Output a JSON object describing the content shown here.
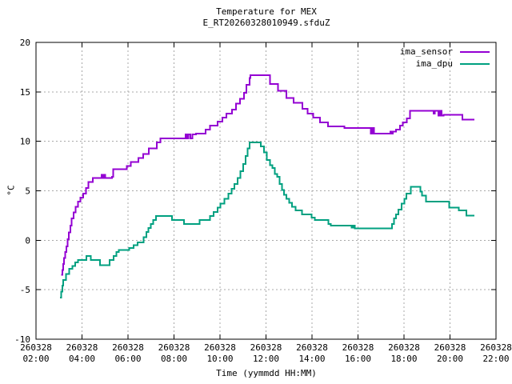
{
  "title": {
    "line1": "Temperature for MEX",
    "line2": "E_RT20260328010949.sfduZ"
  },
  "axes": {
    "x": {
      "label": "Time (yymmdd HH:MM)",
      "date": "260328",
      "ticks": [
        {
          "date": "260328",
          "time": "02:00",
          "hour": 2
        },
        {
          "date": "260328",
          "time": "04:00",
          "hour": 4
        },
        {
          "date": "260328",
          "time": "06:00",
          "hour": 6
        },
        {
          "date": "260328",
          "time": "08:00",
          "hour": 8
        },
        {
          "date": "260328",
          "time": "10:00",
          "hour": 10
        },
        {
          "date": "260328",
          "time": "12:00",
          "hour": 12
        },
        {
          "date": "260328",
          "time": "14:00",
          "hour": 14
        },
        {
          "date": "260328",
          "time": "16:00",
          "hour": 16
        },
        {
          "date": "260328",
          "time": "18:00",
          "hour": 18
        },
        {
          "date": "260328",
          "time": "20:00",
          "hour": 20
        },
        {
          "date": "260328",
          "time": "22:00",
          "hour": 22
        }
      ],
      "range": [
        2,
        22
      ]
    },
    "y": {
      "label": "°C",
      "ticks": [
        {
          "label": "-10",
          "value": -10
        },
        {
          "label": "-5",
          "value": -5
        },
        {
          "label": "0",
          "value": 0
        },
        {
          "label": "5",
          "value": 5
        },
        {
          "label": "10",
          "value": 10
        },
        {
          "label": "15",
          "value": 15
        },
        {
          "label": "20",
          "value": 20
        }
      ],
      "range": [
        -10,
        20
      ]
    }
  },
  "legend": {
    "position": "top-right",
    "entries": [
      {
        "label": "ima_sensor",
        "color": "#9400d3"
      },
      {
        "label": "ima_dpu",
        "color": "#00a080"
      }
    ]
  },
  "colors": {
    "grid": "#a8a8a8",
    "border": "#000000",
    "background": "#ffffff",
    "ima_sensor": "#9400d3",
    "ima_dpu": "#00a080"
  },
  "chart_data": {
    "type": "line",
    "style": "steps",
    "title": "Temperature for MEX",
    "subtitle": "E_RT20260328010949.sfduZ",
    "xlabel": "Time (yymmdd HH:MM)",
    "ylabel": "°C",
    "x_date": "260328",
    "xlim_hours": [
      2,
      22
    ],
    "ylim": [
      -10,
      20
    ],
    "grid": true,
    "legend_position": "top-right",
    "series": [
      {
        "name": "ima_sensor",
        "color": "#9400d3",
        "points_hour_degC": [
          [
            3.1,
            -3.5
          ],
          [
            3.14,
            -3.0
          ],
          [
            3.18,
            -2.4
          ],
          [
            3.22,
            -1.8
          ],
          [
            3.27,
            -1.2
          ],
          [
            3.32,
            -0.6
          ],
          [
            3.37,
            0.1
          ],
          [
            3.43,
            0.8
          ],
          [
            3.49,
            1.5
          ],
          [
            3.55,
            2.2
          ],
          [
            3.63,
            2.8
          ],
          [
            3.73,
            3.4
          ],
          [
            3.83,
            3.9
          ],
          [
            3.93,
            4.3
          ],
          [
            4.05,
            4.7
          ],
          [
            4.17,
            5.3
          ],
          [
            4.28,
            5.9
          ],
          [
            4.47,
            6.3
          ],
          [
            4.86,
            6.6
          ],
          [
            4.91,
            6.3
          ],
          [
            4.96,
            6.6
          ],
          [
            5.01,
            6.3
          ],
          [
            5.3,
            6.4
          ],
          [
            5.36,
            7.2
          ],
          [
            5.95,
            7.5
          ],
          [
            6.12,
            7.9
          ],
          [
            6.45,
            8.3
          ],
          [
            6.66,
            8.7
          ],
          [
            6.9,
            9.3
          ],
          [
            7.25,
            9.9
          ],
          [
            7.4,
            10.3
          ],
          [
            8.5,
            10.7
          ],
          [
            8.56,
            10.3
          ],
          [
            8.63,
            10.7
          ],
          [
            8.71,
            10.3
          ],
          [
            8.8,
            10.7
          ],
          [
            8.96,
            10.8
          ],
          [
            9.37,
            11.2
          ],
          [
            9.56,
            11.6
          ],
          [
            9.9,
            12.0
          ],
          [
            10.1,
            12.4
          ],
          [
            10.28,
            12.8
          ],
          [
            10.52,
            13.2
          ],
          [
            10.7,
            13.8
          ],
          [
            10.87,
            14.3
          ],
          [
            11.04,
            14.9
          ],
          [
            11.15,
            15.7
          ],
          [
            11.28,
            16.4
          ],
          [
            11.33,
            16.7
          ],
          [
            12.18,
            15.8
          ],
          [
            12.52,
            15.1
          ],
          [
            12.88,
            14.4
          ],
          [
            13.2,
            13.9
          ],
          [
            13.58,
            13.3
          ],
          [
            13.8,
            12.8
          ],
          [
            14.05,
            12.4
          ],
          [
            14.35,
            11.9
          ],
          [
            14.7,
            11.5
          ],
          [
            15.4,
            11.35
          ],
          [
            16.55,
            10.8
          ],
          [
            16.62,
            11.35
          ],
          [
            16.7,
            10.8
          ],
          [
            17.4,
            11.0
          ],
          [
            17.46,
            10.8
          ],
          [
            17.52,
            11.0
          ],
          [
            17.65,
            11.2
          ],
          [
            17.83,
            11.6
          ],
          [
            17.95,
            11.9
          ],
          [
            18.12,
            12.3
          ],
          [
            18.26,
            13.1
          ],
          [
            19.28,
            12.8
          ],
          [
            19.34,
            13.1
          ],
          [
            19.5,
            12.6
          ],
          [
            19.56,
            13.1
          ],
          [
            19.63,
            12.6
          ],
          [
            19.72,
            12.7
          ],
          [
            20.54,
            12.2
          ],
          [
            21.06,
            12.2
          ]
        ]
      },
      {
        "name": "ima_dpu",
        "color": "#00a080",
        "points_hour_degC": [
          [
            3.04,
            -5.8
          ],
          [
            3.09,
            -5.2
          ],
          [
            3.14,
            -4.6
          ],
          [
            3.19,
            -4.0
          ],
          [
            3.3,
            -3.4
          ],
          [
            3.45,
            -2.9
          ],
          [
            3.58,
            -2.6
          ],
          [
            3.7,
            -2.25
          ],
          [
            3.82,
            -2.0
          ],
          [
            4.19,
            -1.6
          ],
          [
            4.38,
            -2.0
          ],
          [
            4.78,
            -2.5
          ],
          [
            5.2,
            -2.0
          ],
          [
            5.38,
            -1.6
          ],
          [
            5.5,
            -1.2
          ],
          [
            5.6,
            -1.0
          ],
          [
            6.05,
            -0.8
          ],
          [
            6.25,
            -0.5
          ],
          [
            6.42,
            -0.2
          ],
          [
            6.68,
            0.3
          ],
          [
            6.8,
            0.85
          ],
          [
            6.89,
            1.25
          ],
          [
            6.99,
            1.65
          ],
          [
            7.09,
            2.05
          ],
          [
            7.22,
            2.45
          ],
          [
            7.92,
            2.05
          ],
          [
            8.43,
            1.65
          ],
          [
            9.12,
            2.05
          ],
          [
            9.56,
            2.45
          ],
          [
            9.72,
            2.85
          ],
          [
            9.89,
            3.3
          ],
          [
            10.02,
            3.7
          ],
          [
            10.19,
            4.2
          ],
          [
            10.36,
            4.7
          ],
          [
            10.5,
            5.2
          ],
          [
            10.63,
            5.7
          ],
          [
            10.76,
            6.3
          ],
          [
            10.89,
            7.0
          ],
          [
            11.01,
            7.7
          ],
          [
            11.11,
            8.5
          ],
          [
            11.2,
            9.3
          ],
          [
            11.29,
            9.9
          ],
          [
            11.77,
            9.5
          ],
          [
            11.91,
            8.9
          ],
          [
            12.03,
            8.1
          ],
          [
            12.17,
            7.6
          ],
          [
            12.27,
            7.3
          ],
          [
            12.38,
            6.7
          ],
          [
            12.49,
            6.4
          ],
          [
            12.59,
            5.7
          ],
          [
            12.69,
            5.1
          ],
          [
            12.79,
            4.6
          ],
          [
            12.89,
            4.2
          ],
          [
            13.01,
            3.8
          ],
          [
            13.13,
            3.4
          ],
          [
            13.29,
            3.0
          ],
          [
            13.56,
            2.6
          ],
          [
            13.99,
            2.3
          ],
          [
            14.12,
            2.05
          ],
          [
            14.71,
            1.65
          ],
          [
            14.82,
            1.5
          ],
          [
            15.73,
            1.3
          ],
          [
            15.79,
            1.5
          ],
          [
            15.86,
            1.2
          ],
          [
            17.47,
            1.65
          ],
          [
            17.57,
            2.2
          ],
          [
            17.66,
            2.6
          ],
          [
            17.76,
            3.1
          ],
          [
            17.89,
            3.7
          ],
          [
            18.01,
            4.2
          ],
          [
            18.11,
            4.7
          ],
          [
            18.29,
            5.4
          ],
          [
            18.71,
            4.9
          ],
          [
            18.79,
            4.5
          ],
          [
            18.96,
            3.9
          ],
          [
            19.96,
            3.3
          ],
          [
            20.38,
            3.0
          ],
          [
            20.71,
            2.5
          ],
          [
            21.06,
            2.5
          ]
        ]
      }
    ]
  }
}
